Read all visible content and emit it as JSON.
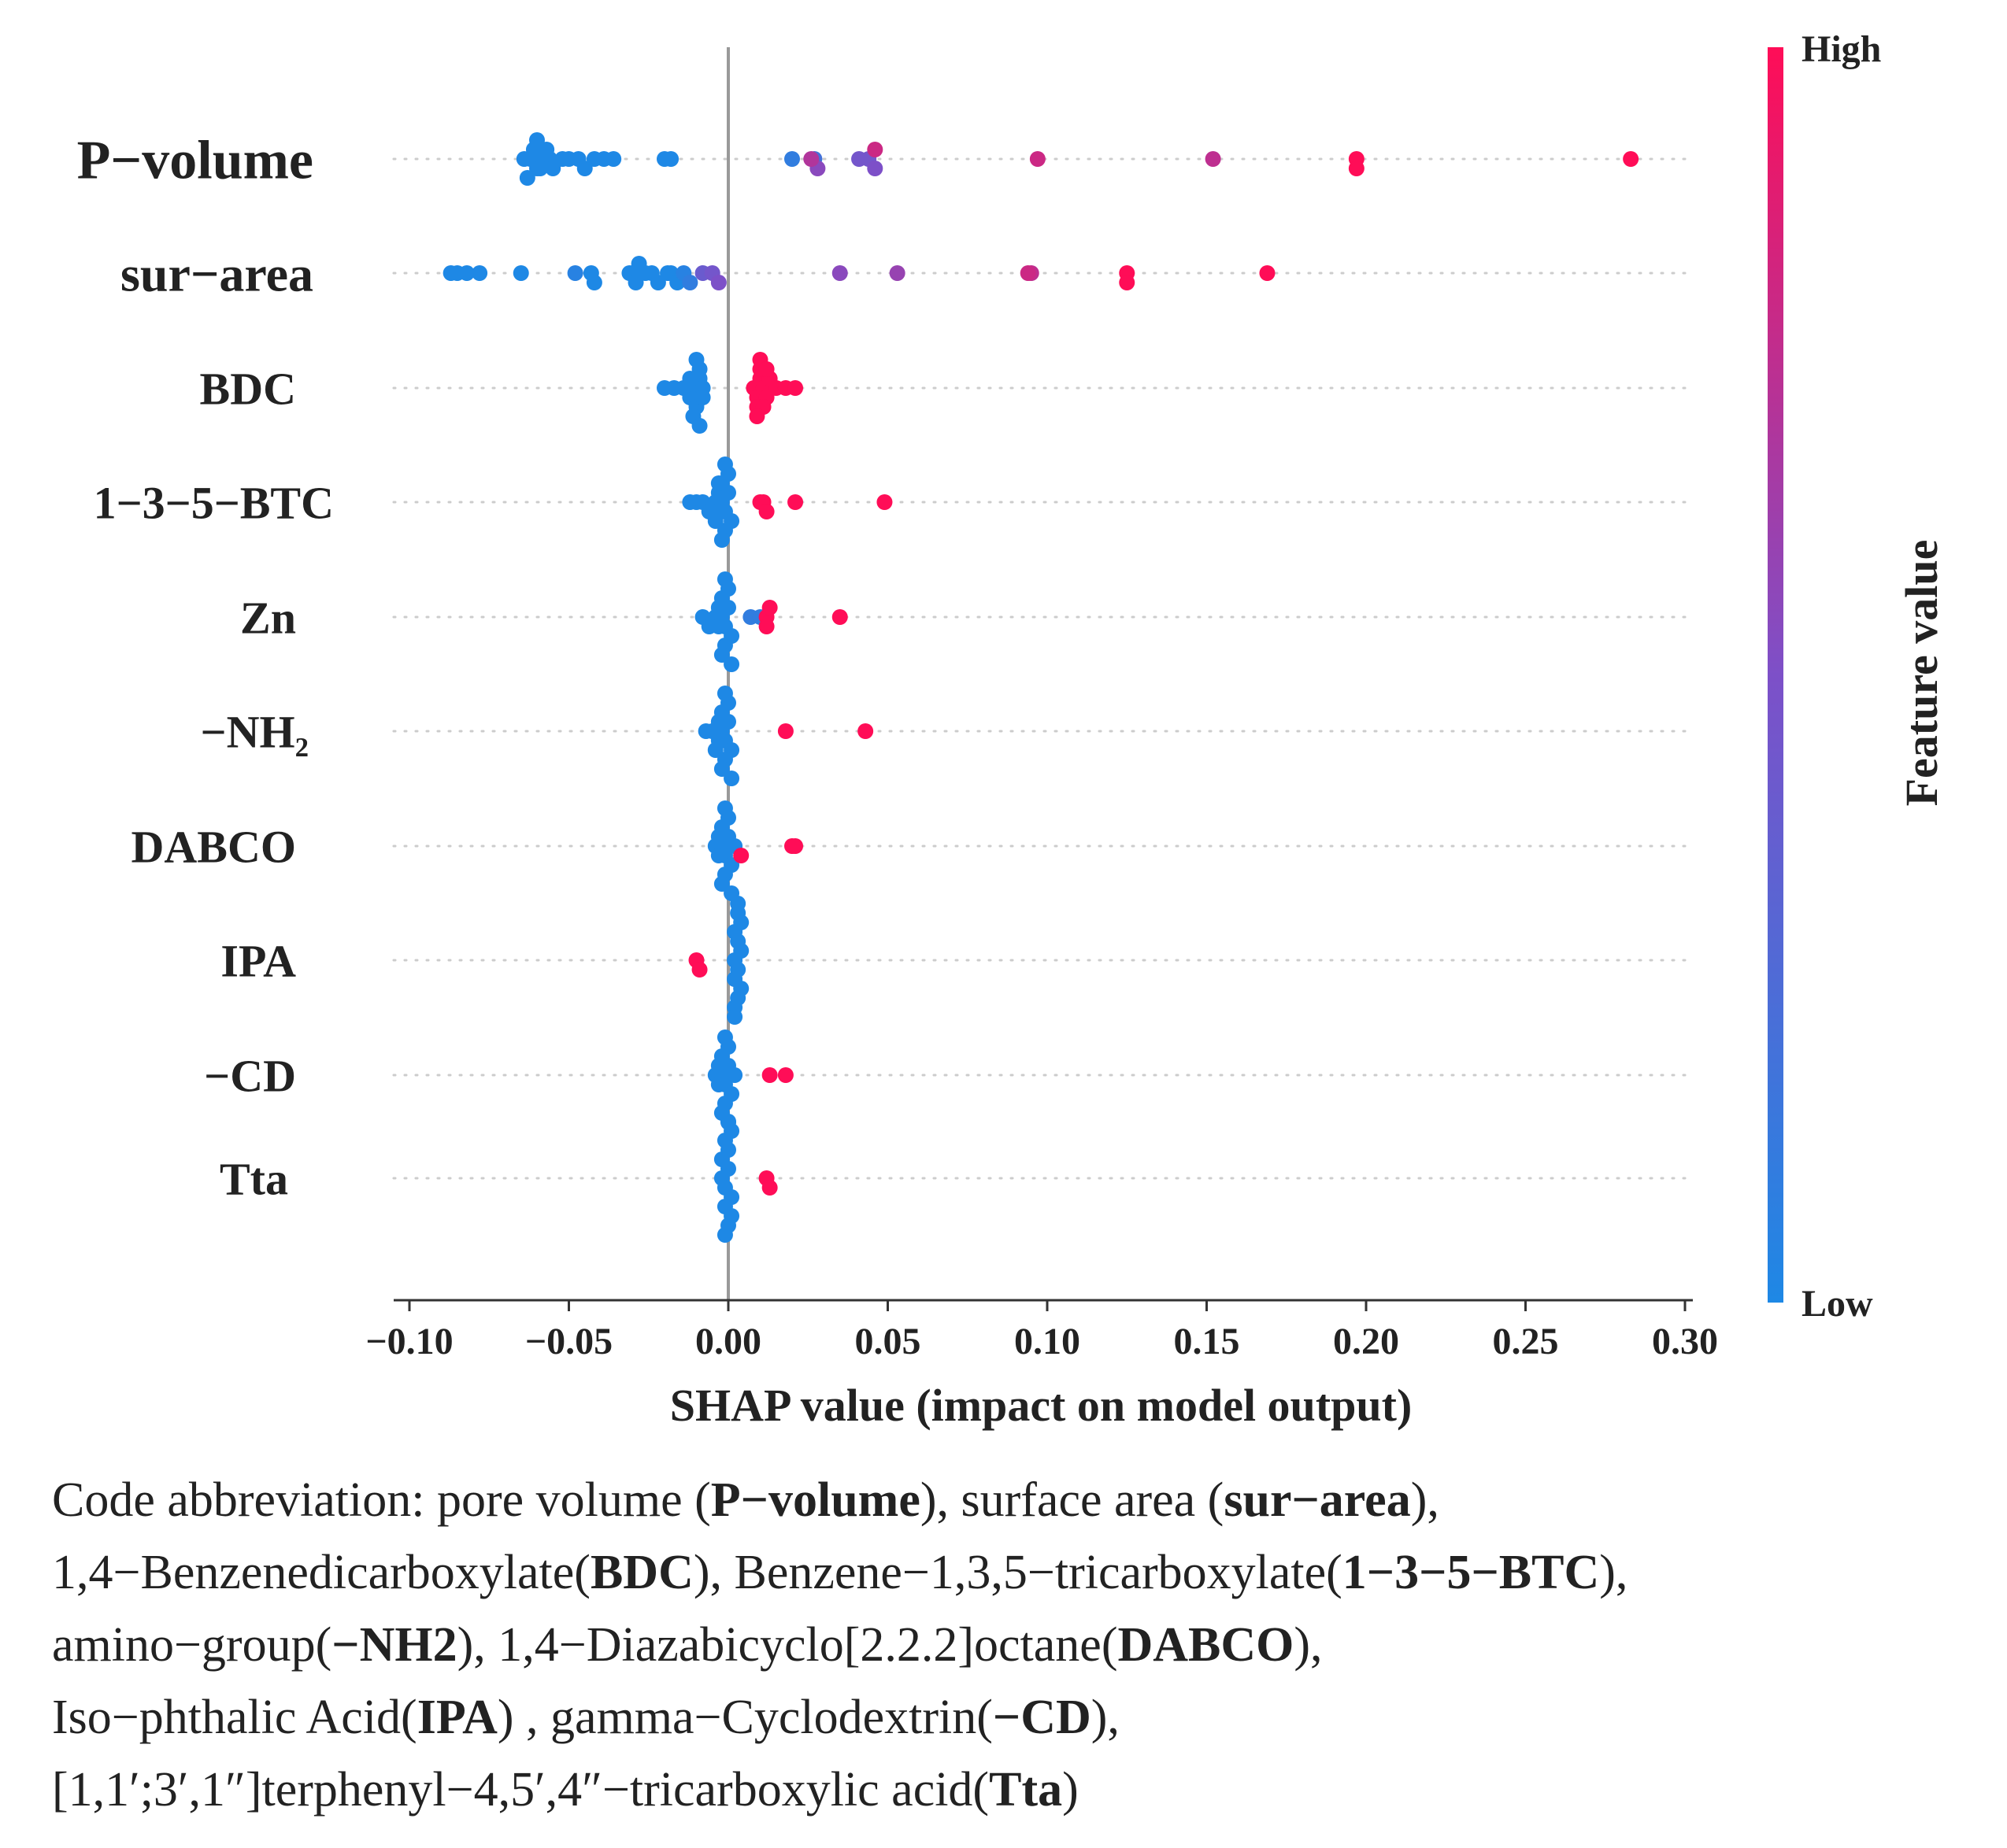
{
  "chart_data": {
    "type": "scatter",
    "subtype": "shap-beeswarm",
    "xlabel": "SHAP value (impact on model output)",
    "xlim": [
      -0.105,
      0.305
    ],
    "xticks": [
      "-0.10",
      "-0.05",
      "0.00",
      "0.05",
      "0.10",
      "0.15",
      "0.20",
      "0.25",
      "0.30"
    ],
    "xtick_values": [
      -0.1,
      -0.05,
      0.0,
      0.05,
      0.1,
      0.15,
      0.2,
      0.25,
      0.3
    ],
    "colorbar": {
      "label": "Feature value",
      "high": "High",
      "low": "Low",
      "low_color": "#1E88E5",
      "high_color": "#FF0D57"
    },
    "features": [
      {
        "name": "P−volume",
        "points": [
          [
            -0.062,
            0
          ],
          [
            -0.06,
            0
          ],
          [
            -0.058,
            0
          ],
          [
            -0.064,
            0
          ],
          [
            -0.056,
            0
          ],
          [
            -0.061,
            0
          ],
          [
            -0.059,
            0
          ],
          [
            -0.063,
            0
          ],
          [
            -0.057,
            0
          ],
          [
            -0.06,
            0
          ],
          [
            -0.055,
            0
          ],
          [
            -0.052,
            0
          ],
          [
            -0.05,
            0
          ],
          [
            -0.047,
            0
          ],
          [
            -0.045,
            0
          ],
          [
            -0.042,
            0
          ],
          [
            -0.039,
            0
          ],
          [
            -0.036,
            0
          ],
          [
            -0.02,
            0
          ],
          [
            -0.018,
            0
          ],
          [
            0.02,
            0.1
          ],
          [
            0.027,
            0.2
          ],
          [
            0.028,
            0.55
          ],
          [
            0.041,
            0.45
          ],
          [
            0.044,
            0.45
          ],
          [
            0.046,
            0.5
          ],
          [
            0.026,
            0.7
          ],
          [
            0.046,
            0.8
          ],
          [
            0.097,
            0.8
          ],
          [
            0.152,
            0.75
          ],
          [
            0.197,
            1
          ],
          [
            0.197,
            1
          ],
          [
            0.283,
            1
          ]
        ]
      },
      {
        "name": "sur−area",
        "points": [
          [
            -0.087,
            0
          ],
          [
            -0.085,
            0
          ],
          [
            -0.082,
            0
          ],
          [
            -0.078,
            0
          ],
          [
            -0.065,
            0
          ],
          [
            -0.048,
            0.05
          ],
          [
            -0.043,
            0
          ],
          [
            -0.042,
            0
          ],
          [
            -0.031,
            0
          ],
          [
            -0.03,
            0
          ],
          [
            -0.029,
            0
          ],
          [
            -0.028,
            0
          ],
          [
            -0.026,
            0
          ],
          [
            -0.024,
            0
          ],
          [
            -0.022,
            0
          ],
          [
            -0.019,
            0
          ],
          [
            -0.018,
            0
          ],
          [
            -0.016,
            0
          ],
          [
            -0.014,
            0.05
          ],
          [
            -0.012,
            0.1
          ],
          [
            -0.008,
            0.4
          ],
          [
            -0.005,
            0.45
          ],
          [
            -0.003,
            0.5
          ],
          [
            0.035,
            0.55
          ],
          [
            0.053,
            0.6
          ],
          [
            0.095,
            0.75
          ],
          [
            0.094,
            0.8
          ],
          [
            0.125,
            1
          ],
          [
            0.125,
            1
          ],
          [
            0.169,
            1
          ]
        ]
      },
      {
        "name": "BDC",
        "points": [
          [
            -0.02,
            0
          ],
          [
            -0.017,
            0
          ],
          [
            -0.014,
            0
          ],
          [
            -0.012,
            0
          ],
          [
            -0.011,
            0
          ],
          [
            -0.01,
            0
          ],
          [
            -0.009,
            0
          ],
          [
            -0.008,
            0
          ],
          [
            -0.01,
            0
          ],
          [
            -0.009,
            0
          ],
          [
            -0.011,
            0
          ],
          [
            -0.008,
            0
          ],
          [
            -0.01,
            0
          ],
          [
            -0.012,
            0
          ],
          [
            -0.009,
            0
          ],
          [
            0.008,
            1
          ],
          [
            0.009,
            1
          ],
          [
            0.01,
            1
          ],
          [
            0.011,
            1
          ],
          [
            0.012,
            1
          ],
          [
            0.013,
            1
          ],
          [
            0.009,
            1
          ],
          [
            0.01,
            1
          ],
          [
            0.011,
            1
          ],
          [
            0.015,
            1
          ],
          [
            0.018,
            1
          ],
          [
            0.021,
            1
          ],
          [
            0.009,
            1
          ],
          [
            0.01,
            1
          ],
          [
            0.012,
            1
          ]
        ]
      },
      {
        "name": "1−3−5−BTC",
        "points": [
          [
            -0.012,
            0
          ],
          [
            -0.01,
            0
          ],
          [
            -0.008,
            0
          ],
          [
            -0.006,
            0
          ],
          [
            -0.004,
            0
          ],
          [
            -0.003,
            0
          ],
          [
            -0.002,
            0
          ],
          [
            -0.001,
            0
          ],
          [
            0.0,
            0
          ],
          [
            0.001,
            0
          ],
          [
            -0.003,
            0
          ],
          [
            -0.002,
            0
          ],
          [
            -0.004,
            0
          ],
          [
            -0.001,
            0
          ],
          [
            0.0,
            0
          ],
          [
            -0.002,
            0
          ],
          [
            -0.003,
            0
          ],
          [
            -0.001,
            0
          ],
          [
            0.01,
            1
          ],
          [
            0.011,
            1
          ],
          [
            0.012,
            1
          ],
          [
            0.021,
            1
          ],
          [
            0.049,
            1
          ]
        ]
      },
      {
        "name": "Zn",
        "points": [
          [
            -0.008,
            0
          ],
          [
            -0.006,
            0
          ],
          [
            -0.004,
            0
          ],
          [
            -0.003,
            0
          ],
          [
            -0.002,
            0
          ],
          [
            -0.001,
            0
          ],
          [
            0.0,
            0
          ],
          [
            0.001,
            0
          ],
          [
            -0.003,
            0
          ],
          [
            -0.002,
            0
          ],
          [
            -0.001,
            0
          ],
          [
            0.0,
            0
          ],
          [
            -0.002,
            0
          ],
          [
            -0.001,
            0
          ],
          [
            0.001,
            0
          ],
          [
            0.007,
            0.1
          ],
          [
            0.01,
            0.1
          ],
          [
            0.012,
            1
          ],
          [
            0.012,
            1
          ],
          [
            0.013,
            1
          ],
          [
            0.035,
            1
          ]
        ]
      },
      {
        "name": "−NH₂",
        "points": [
          [
            -0.007,
            0
          ],
          [
            -0.005,
            0
          ],
          [
            -0.003,
            0
          ],
          [
            -0.002,
            0
          ],
          [
            -0.001,
            0
          ],
          [
            0.0,
            0
          ],
          [
            0.001,
            0
          ],
          [
            -0.003,
            0
          ],
          [
            -0.002,
            0
          ],
          [
            -0.001,
            0
          ],
          [
            0.0,
            0
          ],
          [
            -0.004,
            0
          ],
          [
            -0.002,
            0
          ],
          [
            -0.001,
            0
          ],
          [
            0.001,
            0
          ],
          [
            0.018,
            1
          ],
          [
            0.043,
            1
          ]
        ]
      },
      {
        "name": "DABCO",
        "points": [
          [
            -0.004,
            0
          ],
          [
            -0.003,
            0
          ],
          [
            -0.002,
            0
          ],
          [
            -0.001,
            0
          ],
          [
            0.0,
            0
          ],
          [
            0.001,
            0
          ],
          [
            -0.003,
            0
          ],
          [
            -0.002,
            0
          ],
          [
            -0.001,
            0
          ],
          [
            0.0,
            0
          ],
          [
            -0.002,
            0
          ],
          [
            -0.001,
            0
          ],
          [
            0.001,
            0
          ],
          [
            0.002,
            0
          ],
          [
            0.004,
            1
          ],
          [
            0.02,
            1
          ],
          [
            0.021,
            1
          ]
        ]
      },
      {
        "name": "IPA",
        "points": [
          [
            -0.01,
            1
          ],
          [
            -0.009,
            1
          ],
          [
            0.002,
            0
          ],
          [
            0.003,
            0
          ],
          [
            0.004,
            0
          ],
          [
            0.002,
            0
          ],
          [
            0.003,
            0
          ],
          [
            0.004,
            0
          ],
          [
            0.002,
            0
          ],
          [
            0.003,
            0
          ],
          [
            0.004,
            0
          ],
          [
            0.002,
            0
          ],
          [
            0.003,
            0
          ],
          [
            0.002,
            0
          ],
          [
            0.003,
            0
          ]
        ]
      },
      {
        "name": "−CD",
        "points": [
          [
            -0.004,
            0
          ],
          [
            -0.003,
            0
          ],
          [
            -0.002,
            0
          ],
          [
            -0.001,
            0
          ],
          [
            0.0,
            0
          ],
          [
            0.001,
            0
          ],
          [
            -0.003,
            0
          ],
          [
            -0.002,
            0
          ],
          [
            -0.001,
            0
          ],
          [
            0.0,
            0
          ],
          [
            0.002,
            0
          ],
          [
            -0.002,
            0
          ],
          [
            -0.001,
            0
          ],
          [
            0.0,
            0
          ],
          [
            0.013,
            1
          ],
          [
            0.018,
            1
          ]
        ]
      },
      {
        "name": "Tta",
        "points": [
          [
            -0.002,
            0
          ],
          [
            -0.001,
            0
          ],
          [
            0.0,
            0
          ],
          [
            0.001,
            0
          ],
          [
            -0.002,
            0
          ],
          [
            -0.001,
            0
          ],
          [
            0.0,
            0
          ],
          [
            0.001,
            0
          ],
          [
            -0.001,
            0
          ],
          [
            0.0,
            0
          ],
          [
            0.001,
            0
          ],
          [
            -0.001,
            0
          ],
          [
            0.0,
            0
          ],
          [
            0.012,
            1
          ],
          [
            0.013,
            1
          ]
        ]
      }
    ]
  },
  "caption": {
    "intro": "Code abbreviation: ",
    "items": [
      {
        "desc": "pore volume (",
        "code": "P−volume",
        "tail": "), "
      },
      {
        "desc": "surface area (",
        "code": "sur−area",
        "tail": "),"
      },
      {
        "desc": "1,4−Benzenedicarboxylate(",
        "code": "BDC",
        "tail": "), "
      },
      {
        "desc": "Benzene−1,3,5−tricarboxylate(",
        "code": "1−3−5−BTC",
        "tail": "),"
      },
      {
        "desc": "amino−group(",
        "code": "−NH2",
        "tail": "), "
      },
      {
        "desc": "1,4−Diazabicyclo[2.2.2]octane(",
        "code": "DABCO",
        "tail": "),"
      },
      {
        "desc": "Iso−phthalic Acid(",
        "code": "IPA",
        "tail": ") , "
      },
      {
        "desc": "gamma−Cyclodextrin(",
        "code": "−CD",
        "tail": "),"
      },
      {
        "desc": "[1,1′;3′,1″]terphenyl−4,5′,4″−tricarboxylic acid(",
        "code": "Tta",
        "tail": ")"
      }
    ]
  }
}
